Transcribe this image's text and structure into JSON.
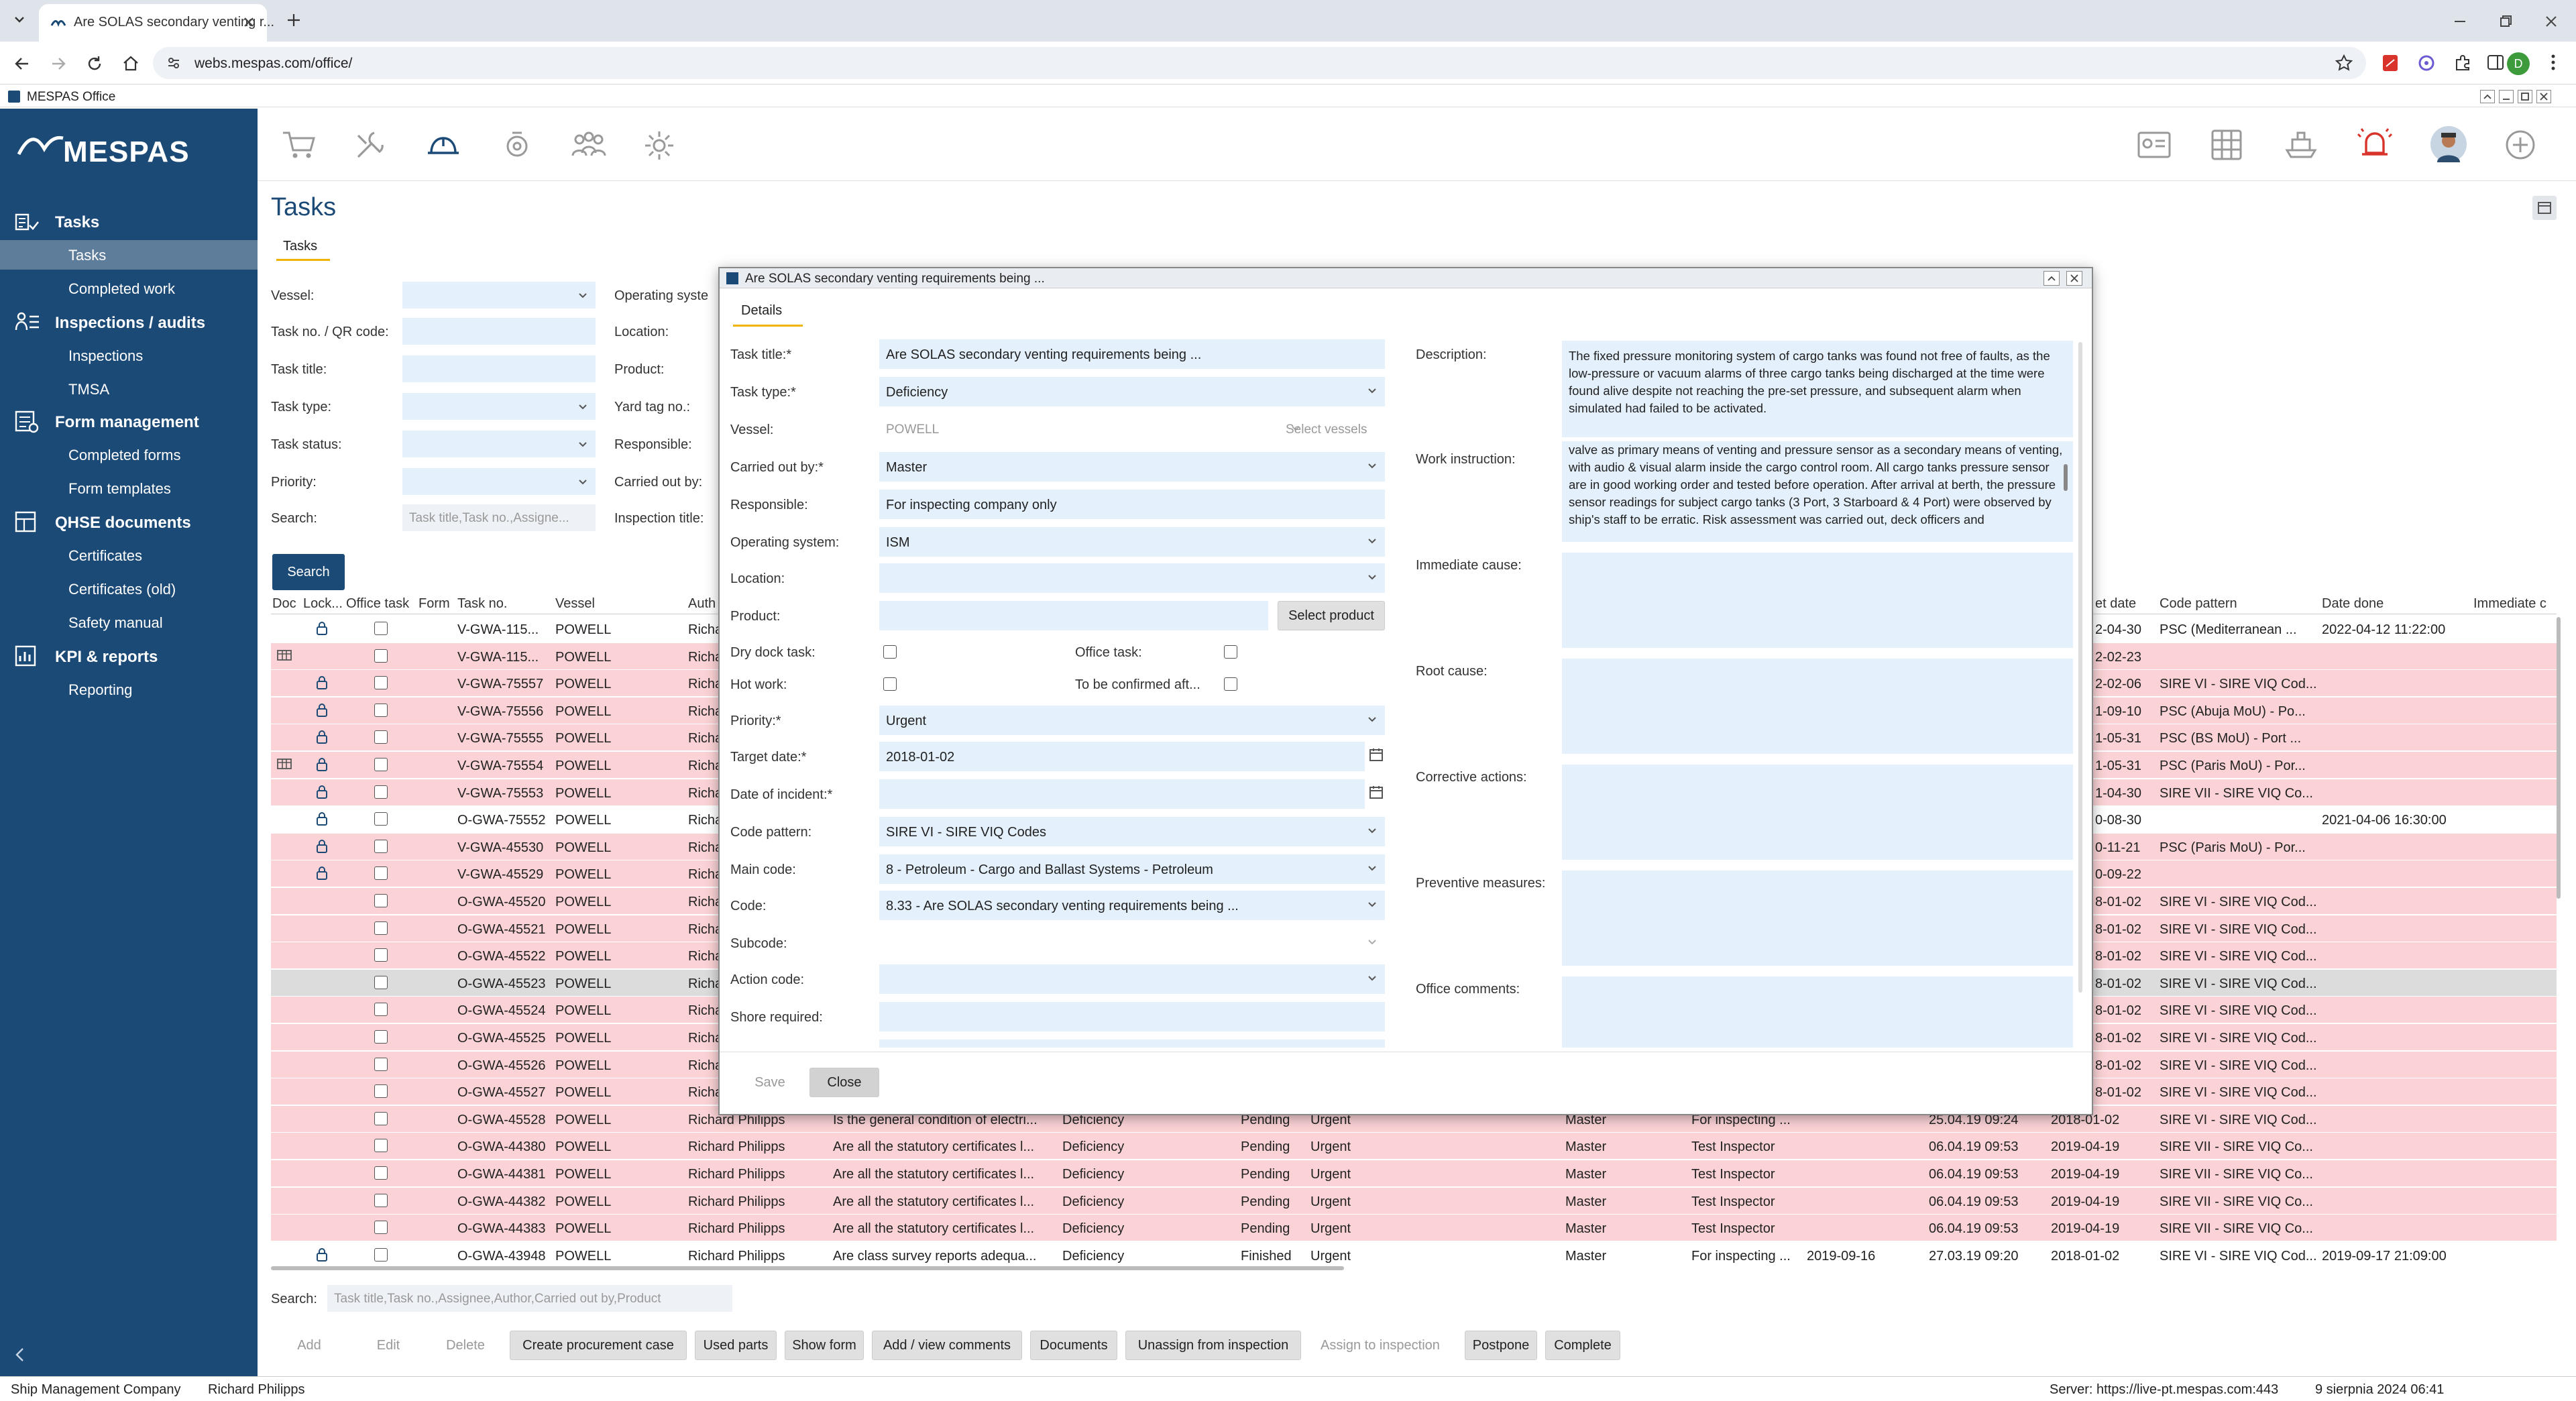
{
  "browser": {
    "tab_title": "Are SOLAS secondary venting r...",
    "url": "webs.mespas.com/office/",
    "profile_initial": "D"
  },
  "app": {
    "window_title": "MESPAS Office",
    "logo_text": "MESPAS"
  },
  "sidebar": {
    "sections": [
      {
        "label": "Tasks",
        "items": [
          "Tasks",
          "Completed work"
        ]
      },
      {
        "label": "Inspections / audits",
        "items": [
          "Inspections",
          "TMSA"
        ]
      },
      {
        "label": "Form management",
        "items": [
          "Completed forms",
          "Form templates"
        ]
      },
      {
        "label": "QHSE documents",
        "items": [
          "Certificates",
          "Certificates (old)",
          "Safety manual"
        ]
      },
      {
        "label": "KPI & reports",
        "items": [
          "Reporting"
        ]
      }
    ]
  },
  "page": {
    "title": "Tasks",
    "tab": "Tasks"
  },
  "filters": {
    "vessel": "Vessel:",
    "task_no": "Task no. / QR code:",
    "task_title": "Task title:",
    "task_type": "Task type:",
    "task_status": "Task status:",
    "priority": "Priority:",
    "search": "Search:",
    "search_placeholder": "Task title,Task no.,Assigne...",
    "operating_system": "Operating syste",
    "location": "Location:",
    "product": "Product:",
    "yard_tag": "Yard tag no.:",
    "responsible": "Responsible:",
    "carried_out_by": "Carried out by:",
    "inspection_title": "Inspection title:",
    "search_button": "Search"
  },
  "table": {
    "headers": [
      "Doc",
      "Lock...",
      "Office task",
      "Form",
      "Task no.",
      "Vessel",
      "Auth",
      "et date",
      "Code pattern",
      "Date done",
      "Immediate c"
    ],
    "rows": [
      {
        "task_no": "V-GWA-115...",
        "vessel": "POWELL",
        "author": "Richa",
        "et_date": "2-04-30",
        "code": "PSC (Mediterranean ...",
        "done": "2022-04-12 11:22:00",
        "lock": true,
        "doc": false,
        "color": "white"
      },
      {
        "task_no": "V-GWA-115...",
        "vessel": "POWELL",
        "author": "Richa",
        "et_date": "2-02-23",
        "code": "",
        "done": "",
        "lock": false,
        "doc": true,
        "color": "pink"
      },
      {
        "task_no": "V-GWA-75557",
        "vessel": "POWELL",
        "author": "Richa",
        "et_date": "2-02-06",
        "code": "SIRE VI - SIRE VIQ Cod...",
        "done": "",
        "lock": true,
        "doc": false,
        "color": "pink"
      },
      {
        "task_no": "V-GWA-75556",
        "vessel": "POWELL",
        "author": "Richa",
        "et_date": "1-09-10",
        "code": "PSC (Abuja MoU) - Po...",
        "done": "",
        "lock": true,
        "doc": false,
        "color": "pink"
      },
      {
        "task_no": "V-GWA-75555",
        "vessel": "POWELL",
        "author": "Richa",
        "et_date": "1-05-31",
        "code": "PSC (BS MoU) - Port ...",
        "done": "",
        "lock": true,
        "doc": false,
        "color": "pink"
      },
      {
        "task_no": "V-GWA-75554",
        "vessel": "POWELL",
        "author": "Richa",
        "et_date": "1-05-31",
        "code": "PSC (Paris MoU) - Por...",
        "done": "",
        "lock": true,
        "doc": true,
        "color": "pink"
      },
      {
        "task_no": "V-GWA-75553",
        "vessel": "POWELL",
        "author": "Richa",
        "et_date": "1-04-30",
        "code": "SIRE VII - SIRE VIQ Co...",
        "done": "",
        "lock": true,
        "doc": false,
        "color": "pink"
      },
      {
        "task_no": "O-GWA-75552",
        "vessel": "POWELL",
        "author": "Richa",
        "et_date": "0-08-30",
        "code": "",
        "done": "2021-04-06 16:30:00",
        "lock": true,
        "doc": false,
        "color": "white"
      },
      {
        "task_no": "V-GWA-45530",
        "vessel": "POWELL",
        "author": "Richa",
        "et_date": "0-11-21",
        "code": "PSC (Paris MoU) - Por...",
        "done": "",
        "lock": true,
        "doc": false,
        "color": "pink"
      },
      {
        "task_no": "V-GWA-45529",
        "vessel": "POWELL",
        "author": "Richa",
        "et_date": "0-09-22",
        "code": "",
        "done": "",
        "lock": true,
        "doc": false,
        "color": "pink"
      },
      {
        "task_no": "O-GWA-45520",
        "vessel": "POWELL",
        "author": "Richa",
        "et_date": "8-01-02",
        "code": "SIRE VI - SIRE VIQ Cod...",
        "done": "",
        "lock": false,
        "doc": false,
        "color": "pink"
      },
      {
        "task_no": "O-GWA-45521",
        "vessel": "POWELL",
        "author": "Richa",
        "et_date": "8-01-02",
        "code": "SIRE VI - SIRE VIQ Cod...",
        "done": "",
        "lock": false,
        "doc": false,
        "color": "pink"
      },
      {
        "task_no": "O-GWA-45522",
        "vessel": "POWELL",
        "author": "Richa",
        "et_date": "8-01-02",
        "code": "SIRE VI - SIRE VIQ Cod...",
        "done": "",
        "lock": false,
        "doc": false,
        "color": "pink"
      },
      {
        "task_no": "O-GWA-45523",
        "vessel": "POWELL",
        "author": "Richa",
        "et_date": "8-01-02",
        "code": "SIRE VI - SIRE VIQ Cod...",
        "done": "",
        "lock": false,
        "doc": false,
        "color": "grey"
      },
      {
        "task_no": "O-GWA-45524",
        "vessel": "POWELL",
        "author": "Richa",
        "et_date": "8-01-02",
        "code": "SIRE VI - SIRE VIQ Cod...",
        "done": "",
        "lock": false,
        "doc": false,
        "color": "pink"
      },
      {
        "task_no": "O-GWA-45525",
        "vessel": "POWELL",
        "author": "Richa",
        "et_date": "8-01-02",
        "code": "SIRE VI - SIRE VIQ Cod...",
        "done": "",
        "lock": false,
        "doc": false,
        "color": "pink"
      },
      {
        "task_no": "O-GWA-45526",
        "vessel": "POWELL",
        "author": "Richa",
        "et_date": "8-01-02",
        "code": "SIRE VI - SIRE VIQ Cod...",
        "done": "",
        "lock": false,
        "doc": false,
        "color": "pink"
      },
      {
        "task_no": "O-GWA-45527",
        "vessel": "POWELL",
        "author": "Richa",
        "et_date": "8-01-02",
        "code": "SIRE VI - SIRE VIQ Cod...",
        "done": "",
        "lock": false,
        "doc": false,
        "color": "pink"
      }
    ],
    "full_rows": [
      {
        "task_no": "O-GWA-45528",
        "vessel": "POWELL",
        "author": "Richard Philipps",
        "title": "Is the general condition of electri...",
        "type": "Deficiency",
        "status": "Pending",
        "priority": "Urgent",
        "carried": "Master",
        "resp": "For inspecting ...",
        "created": "25.04.19 09:24",
        "target": "2018-01-02",
        "code": "SIRE VI - SIRE VIQ Cod...",
        "done": "",
        "lock": false,
        "color": "pink"
      },
      {
        "task_no": "O-GWA-44380",
        "vessel": "POWELL",
        "author": "Richard Philipps",
        "title": "Are all the statutory certificates l...",
        "type": "Deficiency",
        "status": "Pending",
        "priority": "Urgent",
        "carried": "Master",
        "resp": "Test Inspector",
        "created": "06.04.19 09:53",
        "target": "2019-04-19",
        "code": "SIRE VII - SIRE VIQ Co...",
        "done": "",
        "lock": false,
        "color": "pink"
      },
      {
        "task_no": "O-GWA-44381",
        "vessel": "POWELL",
        "author": "Richard Philipps",
        "title": "Are all the statutory certificates l...",
        "type": "Deficiency",
        "status": "Pending",
        "priority": "Urgent",
        "carried": "Master",
        "resp": "Test Inspector",
        "created": "06.04.19 09:53",
        "target": "2019-04-19",
        "code": "SIRE VII - SIRE VIQ Co...",
        "done": "",
        "lock": false,
        "color": "pink"
      },
      {
        "task_no": "O-GWA-44382",
        "vessel": "POWELL",
        "author": "Richard Philipps",
        "title": "Are all the statutory certificates l...",
        "type": "Deficiency",
        "status": "Pending",
        "priority": "Urgent",
        "carried": "Master",
        "resp": "Test Inspector",
        "created": "06.04.19 09:53",
        "target": "2019-04-19",
        "code": "SIRE VII - SIRE VIQ Co...",
        "done": "",
        "lock": false,
        "color": "pink"
      },
      {
        "task_no": "O-GWA-44383",
        "vessel": "POWELL",
        "author": "Richard Philipps",
        "title": "Are all the statutory certificates l...",
        "type": "Deficiency",
        "status": "Pending",
        "priority": "Urgent",
        "carried": "Master",
        "resp": "Test Inspector",
        "created": "06.04.19 09:53",
        "target": "2019-04-19",
        "code": "SIRE VII - SIRE VIQ Co...",
        "done": "",
        "lock": false,
        "color": "pink"
      },
      {
        "task_no": "O-GWA-43948",
        "vessel": "POWELL",
        "author": "Richard Philipps",
        "title": "Are class survey reports adequa...",
        "type": "Deficiency",
        "status": "Finished",
        "priority": "Urgent",
        "carried": "Master",
        "resp": "For inspecting ...",
        "extra": "2019-09-16",
        "created": "27.03.19 09:20",
        "target": "2018-01-02",
        "code": "SIRE VI - SIRE VIQ Cod...",
        "done": "2019-09-17 21:09:00",
        "lock": true,
        "color": "white"
      }
    ]
  },
  "bottom": {
    "search_label": "Search:",
    "search_placeholder": "Task title,Task no.,Assignee,Author,Carried out by,Product",
    "buttons": [
      "Add",
      "Edit",
      "Delete",
      "Create procurement case",
      "Used parts",
      "Show form",
      "Add / view comments",
      "Documents",
      "Unassign from inspection",
      "Assign to inspection",
      "Postpone",
      "Complete"
    ]
  },
  "status_bar": {
    "company": "Ship Management Company",
    "user": "Richard Philipps",
    "server": "Server: https://live-pt.mespas.com:443",
    "datetime": "9 sierpnia 2024 06:41"
  },
  "dialog": {
    "title": "Are SOLAS secondary venting requirements being ...",
    "tab": "Details",
    "labels": {
      "task_title": "Task title:*",
      "task_type": "Task type:*",
      "vessel": "Vessel:",
      "carried_out_by": "Carried out by:*",
      "responsible": "Responsible:",
      "operating_system": "Operating system:",
      "location": "Location:",
      "product": "Product:",
      "dry_dock": "Dry dock task:",
      "office_task": "Office task:",
      "hot_work": "Hot work:",
      "to_be_confirmed": "To be confirmed aft...",
      "priority": "Priority:*",
      "target_date": "Target date:*",
      "date_of_incident": "Date of incident:*",
      "code_pattern": "Code pattern:",
      "main_code": "Main code:",
      "code": "Code:",
      "subcode": "Subcode:",
      "action_code": "Action code:",
      "shore_required": "Shore required:",
      "description": "Description:",
      "work_instruction": "Work instruction:",
      "immediate_cause": "Immediate cause:",
      "root_cause": "Root cause:",
      "corrective_actions": "Corrective actions:",
      "preventive_measures": "Preventive measures:",
      "office_comments": "Office comments:"
    },
    "values": {
      "task_title": "Are SOLAS secondary venting requirements being ...",
      "task_type": "Deficiency",
      "vessel": "POWELL",
      "select_vessels": "Select vessels",
      "carried_out_by": "Master",
      "responsible": "For inspecting company only",
      "operating_system": "ISM",
      "select_product": "Select product",
      "priority": "Urgent",
      "target_date": "2018-01-02",
      "code_pattern": "SIRE VI - SIRE VIQ Codes",
      "main_code": "8 - Petroleum - Cargo and Ballast Systems - Petroleum",
      "code": "8.33 - Are SOLAS secondary venting requirements being ...",
      "description": "The fixed pressure monitoring system of cargo tanks was found not free of faults, as the low-pressure or vacuum alarms of three cargo tanks being discharged at the time were found alive despite not reaching the pre-set pressure, and subsequent alarm when simulated had failed to be activated.",
      "work_instruction": "valve as primary means of venting and pressure sensor as a secondary means of venting, with audio & visual alarm inside the cargo control room. All cargo tanks pressure sensor are in good working order and tested before operation. After arrival at berth, the pressure sensor readings for subject cargo tanks (3 Port, 3 Starboard & 4 Port) were observed by ship's staff to be erratic. Risk assessment was carried out, deck officers and"
    },
    "buttons": {
      "save": "Save",
      "close": "Close"
    }
  },
  "colors": {
    "sidebar": "#1c4a77",
    "row_pink": "#fbd3d6",
    "row_grey": "#dcdcdc",
    "field": "#e4f0fc",
    "alarm_icon": "#d9342b"
  }
}
